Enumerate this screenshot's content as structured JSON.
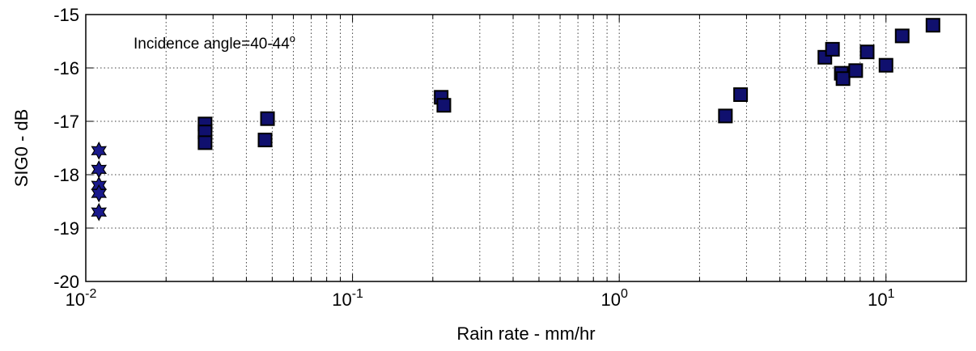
{
  "chart_data": {
    "type": "scatter",
    "xlabel": "Rain rate - mm/hr",
    "ylabel": "SIG0 - dB",
    "xscale": "log",
    "xlim": [
      0.01,
      20
    ],
    "ylim": [
      -20,
      -15
    ],
    "grid": true,
    "annotation": {
      "text": "Incidence angle=40-44",
      "superscript": "o"
    },
    "x_ticks": [
      {
        "value": 0.01,
        "base": "10",
        "exp": "-2"
      },
      {
        "value": 0.1,
        "base": "10",
        "exp": "-1"
      },
      {
        "value": 1,
        "base": "10",
        "exp": "0"
      },
      {
        "value": 10,
        "base": "10",
        "exp": "1"
      }
    ],
    "y_ticks": [
      -20,
      -19,
      -18,
      -17,
      -16,
      -15
    ],
    "series": [
      {
        "marker": "hexagram",
        "color": "#1a1a8c",
        "points": [
          {
            "x": 0.0112,
            "y": -17.55
          },
          {
            "x": 0.0112,
            "y": -17.9
          },
          {
            "x": 0.0112,
            "y": -18.2
          },
          {
            "x": 0.0112,
            "y": -18.35
          },
          {
            "x": 0.0112,
            "y": -18.7
          }
        ]
      },
      {
        "marker": "square",
        "color": "#10106e",
        "points": [
          {
            "x": 0.028,
            "y": -17.05
          },
          {
            "x": 0.028,
            "y": -17.2
          },
          {
            "x": 0.028,
            "y": -17.4
          },
          {
            "x": 0.047,
            "y": -17.35
          },
          {
            "x": 0.048,
            "y": -16.95
          },
          {
            "x": 0.215,
            "y": -16.55
          },
          {
            "x": 0.22,
            "y": -16.7
          },
          {
            "x": 2.5,
            "y": -16.9
          },
          {
            "x": 2.85,
            "y": -16.5
          },
          {
            "x": 5.9,
            "y": -15.8
          },
          {
            "x": 6.3,
            "y": -15.65
          },
          {
            "x": 6.8,
            "y": -16.1
          },
          {
            "x": 6.9,
            "y": -16.2
          },
          {
            "x": 7.7,
            "y": -16.05
          },
          {
            "x": 8.5,
            "y": -15.7
          },
          {
            "x": 10.0,
            "y": -15.95
          },
          {
            "x": 11.5,
            "y": -15.4
          },
          {
            "x": 15.0,
            "y": -15.2
          }
        ]
      }
    ]
  }
}
